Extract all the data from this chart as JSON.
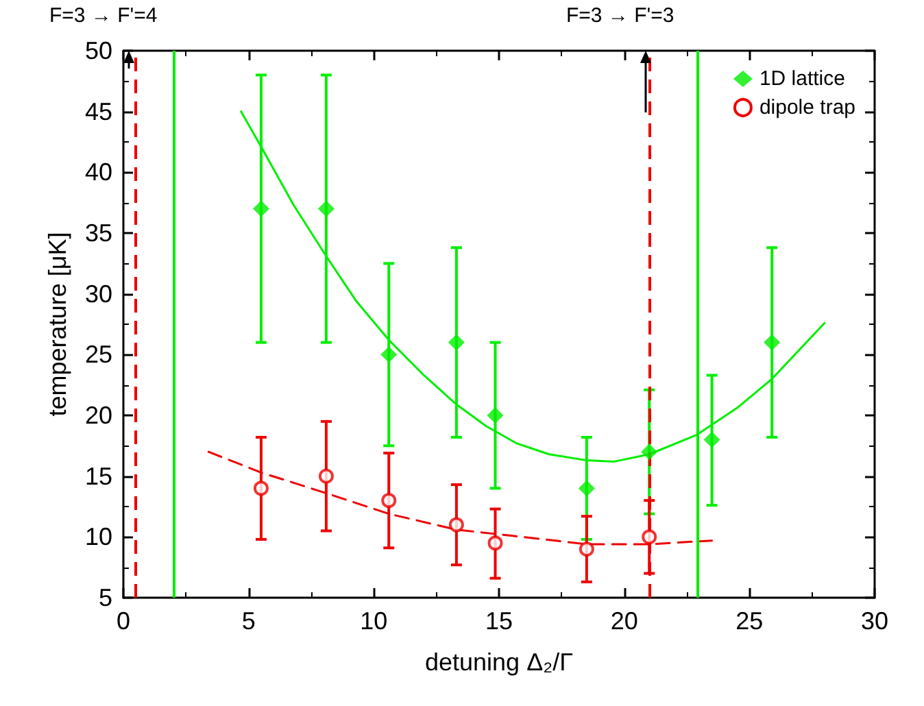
{
  "chart_data": {
    "type": "scatter",
    "xlabel": "detuning Δ₂/Γ",
    "ylabel": "temperature [μK]",
    "xlim": [
      0,
      30
    ],
    "xticks": [
      0,
      5,
      10,
      15,
      20,
      25,
      30
    ],
    "ylim": [
      5,
      50
    ],
    "yticks": [
      5,
      10,
      15,
      20,
      25,
      30,
      35,
      40,
      45,
      50
    ],
    "grid": false,
    "legend": "top right",
    "series": [
      {
        "name": "1D lattice",
        "marker": "diamond",
        "color": "#00ee00",
        "x": [
          5.5,
          8.1,
          10.6,
          13.3,
          14.85,
          18.5,
          21.0,
          23.5,
          25.9
        ],
        "values": [
          37,
          37,
          25,
          26,
          20,
          14,
          17,
          18,
          26
        ],
        "errors": [
          [
            26,
            48
          ],
          [
            26,
            48
          ],
          [
            17.5,
            32.5
          ],
          [
            18.2,
            33.8
          ],
          [
            14,
            26
          ],
          [
            9.8,
            18.2
          ],
          [
            11.9,
            22.1
          ],
          [
            12.6,
            23.3
          ],
          [
            18.2,
            33.8
          ]
        ]
      },
      {
        "name": "dipole trap",
        "marker": "circle",
        "color": "#ee0000",
        "x": [
          5.5,
          8.1,
          10.6,
          13.3,
          14.85,
          18.5,
          21.0
        ],
        "values": [
          14,
          15,
          13,
          11,
          9.5,
          9,
          10
        ],
        "errors": [
          [
            9.8,
            18.2
          ],
          [
            10.5,
            19.5
          ],
          [
            9.1,
            16.9
          ],
          [
            7.7,
            14.3
          ],
          [
            6.6,
            12.3
          ],
          [
            6.3,
            11.7
          ],
          [
            7,
            13
          ]
        ]
      },
      {
        "type": "line",
        "marker": "none",
        "line_style": "solid",
        "color": "#00ee00",
        "x": [
          4.7,
          5.5,
          6.8,
          8.1,
          9.3,
          10.6,
          12,
          13.3,
          14.5,
          15.7,
          17,
          18.5,
          19.6,
          21,
          22.9,
          24.5,
          25.9,
          28
        ],
        "values": [
          45,
          42.1,
          37.3,
          33.1,
          29.4,
          26.2,
          23.3,
          20.9,
          19.1,
          17.7,
          16.8,
          16.3,
          16.2,
          16.8,
          18.4,
          20.6,
          23,
          27.6
        ]
      },
      {
        "type": "line",
        "marker": "none",
        "line_style": "dashed",
        "color": "#ee0000",
        "x": [
          3.4,
          5.5,
          8.1,
          10.6,
          13.3,
          15.5,
          18.5,
          21,
          23.5
        ],
        "values": [
          17,
          15.3,
          13.6,
          11.9,
          10.6,
          10.1,
          9.4,
          9.4,
          9.7
        ]
      }
    ],
    "ref_lines": [
      {
        "axis": "x",
        "value": 0.5,
        "color": "#ee0000",
        "line_style": "dashed"
      },
      {
        "axis": "x",
        "value": 2,
        "color": "#00ee00",
        "line_style": "solid"
      },
      {
        "axis": "x",
        "value": 21,
        "color": "#ee0000",
        "line_style": "dashed"
      },
      {
        "axis": "x",
        "value": 22.9,
        "color": "#00ee00",
        "line_style": "solid"
      }
    ],
    "annotations": [
      "F=3 → F'=4",
      "F=3 → F'=3"
    ]
  }
}
